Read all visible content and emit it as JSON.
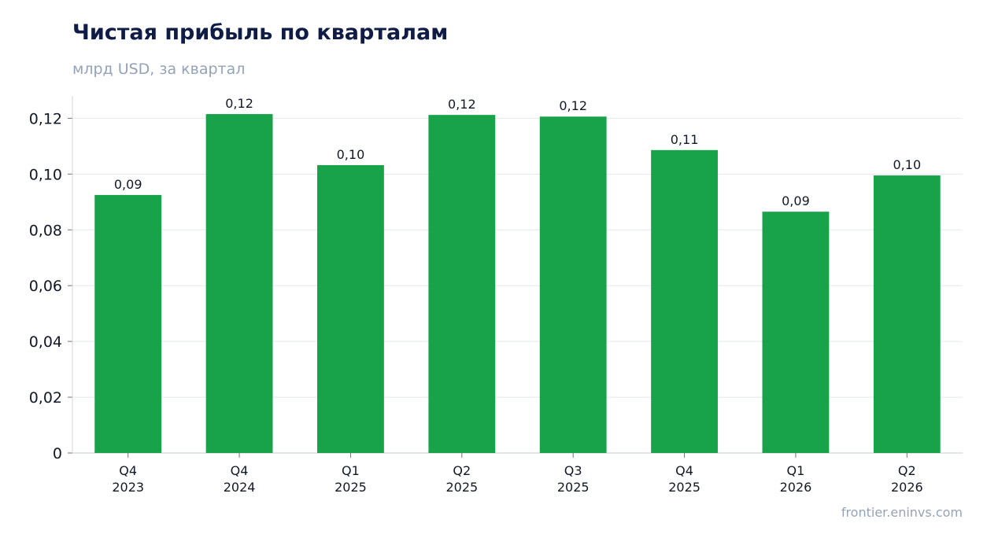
{
  "header": {
    "title": "Чистая прибыль по кварталам",
    "subtitle": "млрд USD, за квартал"
  },
  "footer": {
    "source": "frontier.eninvs.com"
  },
  "chart_data": {
    "type": "bar",
    "title": "Чистая прибыль по кварталам",
    "subtitle": "млрд USD, за квартал",
    "xlabel": "",
    "ylabel": "",
    "categories": [
      [
        "Q4",
        "2023"
      ],
      [
        "Q4",
        "2024"
      ],
      [
        "Q1",
        "2025"
      ],
      [
        "Q2",
        "2025"
      ],
      [
        "Q3",
        "2025"
      ],
      [
        "Q4",
        "2025"
      ],
      [
        "Q1",
        "2026"
      ],
      [
        "Q2",
        "2026"
      ]
    ],
    "values": [
      0.0925,
      0.1215,
      0.1032,
      0.1212,
      0.1206,
      0.1086,
      0.0865,
      0.0995
    ],
    "data_labels": [
      "0,09",
      "0,12",
      "0,10",
      "0,12",
      "0,12",
      "0,11",
      "0,09",
      "0,10"
    ],
    "yticks": [
      0,
      0.02,
      0.04,
      0.06,
      0.08,
      0.1,
      0.12
    ],
    "ytick_labels": [
      "0",
      "0,02",
      "0,04",
      "0,06",
      "0,08",
      "0,10",
      "0,12"
    ],
    "ylim": [
      0,
      0.128
    ],
    "grid": true,
    "legend": "none",
    "bar_color": "#18a34a",
    "grid_color": "#e5e7eb",
    "axis_color": "#d1d5db"
  }
}
